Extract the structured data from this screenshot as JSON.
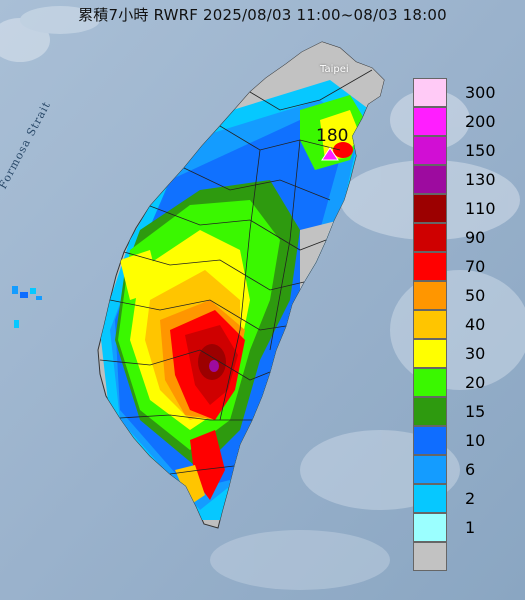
{
  "title": "累積7小時 RWRF 2025/08/03 11:00~08/03 18:00",
  "strait_label": "Formosa Strait",
  "city_label": "Taipei",
  "max_label": "180",
  "legend": {
    "items": [
      {
        "label": "300",
        "color": "#ffcaf6"
      },
      {
        "label": "200",
        "color": "#ff1eff"
      },
      {
        "label": "150",
        "color": "#d10ed4"
      },
      {
        "label": "130",
        "color": "#9d0b9f"
      },
      {
        "label": "110",
        "color": "#9c0000"
      },
      {
        "label": "90",
        "color": "#cf0000"
      },
      {
        "label": "70",
        "color": "#ff0000"
      },
      {
        "label": "50",
        "color": "#ff9600"
      },
      {
        "label": "40",
        "color": "#ffc500"
      },
      {
        "label": "30",
        "color": "#ffff00"
      },
      {
        "label": "20",
        "color": "#3af800"
      },
      {
        "label": "15",
        "color": "#2e9a0f"
      },
      {
        "label": "10",
        "color": "#0f6dff"
      },
      {
        "label": "6",
        "color": "#149cff"
      },
      {
        "label": "2",
        "color": "#06c8ff"
      },
      {
        "label": "1",
        "color": "#9bffff"
      },
      {
        "label": "",
        "color": "#c2c2c2"
      }
    ]
  }
}
